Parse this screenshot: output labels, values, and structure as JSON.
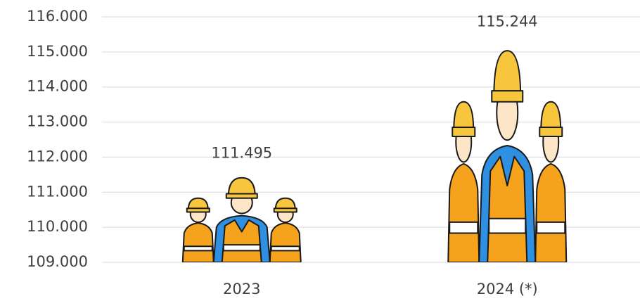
{
  "chart_data": {
    "type": "pictograph",
    "categories": [
      "2023",
      "2024 (*)"
    ],
    "values": [
      111495,
      115244
    ],
    "value_labels": [
      "111.495",
      "115.244"
    ],
    "ylim": [
      109000,
      116000
    ],
    "yticks": [
      {
        "value": 109000,
        "label": "109.000"
      },
      {
        "value": 110000,
        "label": "110.000"
      },
      {
        "value": 111000,
        "label": "111.000"
      },
      {
        "value": 112000,
        "label": "112.000"
      },
      {
        "value": 113000,
        "label": "113.000"
      },
      {
        "value": 114000,
        "label": "114.000"
      },
      {
        "value": 115000,
        "label": "115.000"
      },
      {
        "value": 116000,
        "label": "116.000"
      }
    ],
    "grid": true
  }
}
